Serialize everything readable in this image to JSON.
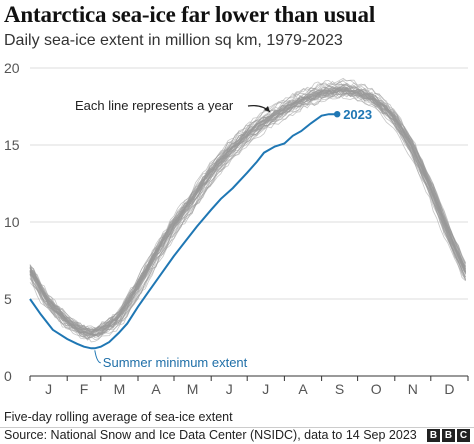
{
  "header": {
    "title": "Antarctica sea-ice far lower than usual",
    "subtitle": "Daily sea-ice extent in million sq km, 1979-2023"
  },
  "footer": {
    "note": "Five-day rolling average of sea-ice extent",
    "source": "Source: National Snow and Ice Data Center (NSIDC), data to 14 Sep 2023",
    "logo": [
      "B",
      "B",
      "C"
    ]
  },
  "chart_data": {
    "type": "line",
    "x_labels": [
      "J",
      "F",
      "M",
      "A",
      "M",
      "J",
      "J",
      "A",
      "S",
      "O",
      "N",
      "D"
    ],
    "y_ticks": [
      0,
      5,
      10,
      15,
      20
    ],
    "ylim": [
      0,
      20
    ],
    "xlim_days": [
      1,
      366
    ],
    "grid": "horizontal",
    "annotations": [
      {
        "text": "Each line represents a year",
        "points_to": "historical years"
      },
      {
        "text": "Summer minimum extent",
        "points_to": "2023 minimum"
      }
    ],
    "historical_series": {
      "years": "1979-2022",
      "color": "#999999",
      "typical_profile": {
        "day": [
          1,
          15,
          32,
          46,
          52,
          60,
          75,
          91,
          105,
          121,
          135,
          152,
          166,
          182,
          196,
          213,
          227,
          244,
          258,
          265,
          274,
          288,
          305,
          319,
          335,
          349,
          366
        ],
        "extent": [
          7.0,
          5.0,
          3.6,
          2.9,
          2.8,
          3.0,
          3.8,
          5.8,
          7.8,
          9.8,
          11.3,
          13.2,
          14.5,
          15.7,
          16.5,
          17.3,
          17.9,
          18.4,
          18.6,
          18.6,
          18.5,
          18.0,
          16.8,
          15.0,
          12.3,
          9.5,
          6.5
        ]
      }
    },
    "series": [
      {
        "name": "2023",
        "color": "#1f77b4",
        "day": [
          1,
          10,
          20,
          32,
          40,
          46,
          52,
          55,
          60,
          67,
          75,
          82,
          91,
          100,
          110,
          121,
          130,
          140,
          152,
          160,
          170,
          182,
          190,
          196,
          205,
          213,
          220,
          227,
          235,
          244,
          250,
          257
        ],
        "extent": [
          5.0,
          4.0,
          3.0,
          2.4,
          2.1,
          1.9,
          1.8,
          1.8,
          1.9,
          2.2,
          2.8,
          3.4,
          4.5,
          5.5,
          6.6,
          7.8,
          8.7,
          9.7,
          10.8,
          11.5,
          12.2,
          13.2,
          13.9,
          14.5,
          14.9,
          15.1,
          15.6,
          15.9,
          16.4,
          16.9,
          17.0,
          17.0
        ],
        "end_label": "2023"
      }
    ]
  }
}
